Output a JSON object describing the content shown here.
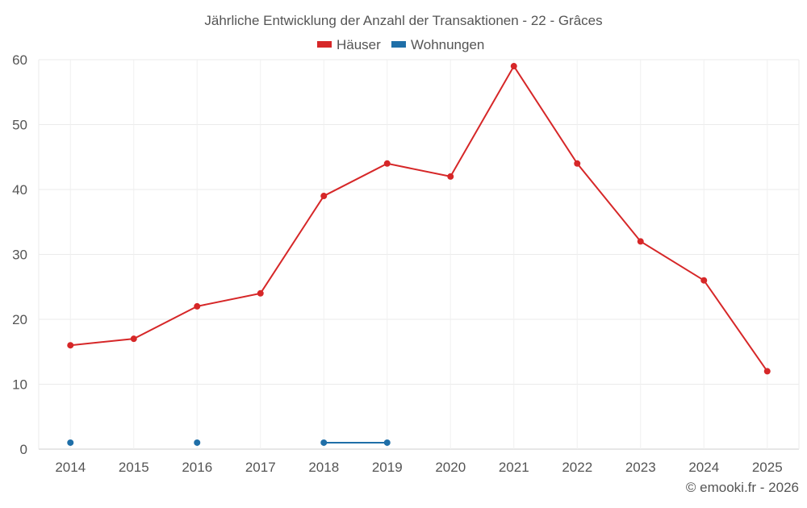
{
  "chart_data": {
    "type": "line",
    "title": "Jährliche Entwicklung der Anzahl der Transaktionen - 22 - Grâces",
    "categories": [
      "2014",
      "2015",
      "2016",
      "2017",
      "2018",
      "2019",
      "2020",
      "2021",
      "2022",
      "2023",
      "2024",
      "2025"
    ],
    "series": [
      {
        "name": "Häuser",
        "color": "#d62728",
        "values": [
          16,
          17,
          22,
          24,
          39,
          44,
          42,
          59,
          44,
          32,
          26,
          12
        ]
      },
      {
        "name": "Wohnungen",
        "color": "#1f6fa8",
        "values": [
          1,
          null,
          1,
          null,
          1,
          1,
          null,
          null,
          null,
          null,
          null,
          null
        ]
      }
    ],
    "yticks": [
      "0",
      "10",
      "20",
      "30",
      "40",
      "50",
      "60"
    ],
    "ylim": [
      0,
      60
    ],
    "xlabel": "",
    "ylabel": "",
    "grid": true,
    "legend": "top-center"
  },
  "credit": "© emooki.fr - 2026"
}
